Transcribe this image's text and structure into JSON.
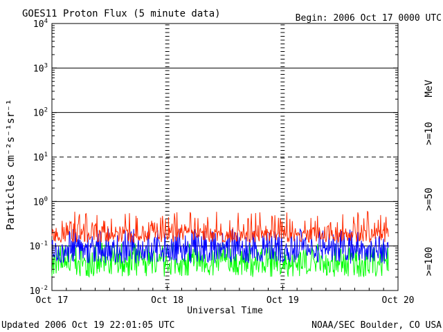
{
  "chart_data": {
    "type": "line",
    "title": "GOES11 Proton Flux (5 minute data)",
    "begin_label": "Begin: 2006 Oct 17 0000 UTC",
    "xlabel": "Universal Time",
    "ylabel": "Particles cm⁻²s⁻¹sr⁻¹",
    "y_scale": "log",
    "ylim": [
      0.01,
      10000
    ],
    "y_ticks": [
      {
        "base": "10",
        "exp": "4",
        "value": 10000
      },
      {
        "base": "10",
        "exp": "3",
        "value": 1000
      },
      {
        "base": "10",
        "exp": "2",
        "value": 100
      },
      {
        "base": "10",
        "exp": "1",
        "value": 10
      },
      {
        "base": "10",
        "exp": "0",
        "value": 1
      },
      {
        "base": "10",
        "exp": "-1",
        "value": 0.1
      },
      {
        "base": "10",
        "exp": "-2",
        "value": 0.01
      }
    ],
    "x_ticks": [
      "Oct 17",
      "Oct 18",
      "Oct 19",
      "Oct 20"
    ],
    "x_range_days": [
      0,
      3
    ],
    "data_end_day": 2.917,
    "reference_lines": [
      {
        "value": 1000,
        "style": "solid"
      },
      {
        "value": 100,
        "style": "solid"
      },
      {
        "value": 10,
        "style": "dashed"
      },
      {
        "value": 1,
        "style": "solid"
      },
      {
        "value": 0.1,
        "style": "solid"
      }
    ],
    "grid": false,
    "series": [
      {
        "name": ">=10",
        "color": "#ff2a00",
        "level": 0.2,
        "min": 0.12,
        "max": 0.6
      },
      {
        "name": ">=50",
        "color": "#0000ff",
        "level": 0.09,
        "min": 0.04,
        "max": 0.25
      },
      {
        "name": ">=100",
        "color": "#00ff00",
        "level": 0.045,
        "min": 0.02,
        "max": 0.12
      }
    ],
    "unit_label": "MeV",
    "legend_position": "right"
  },
  "footer": {
    "updated": "Updated 2006 Oct 19 22:01:05 UTC",
    "credit": "NOAA/SEC Boulder, CO USA"
  }
}
